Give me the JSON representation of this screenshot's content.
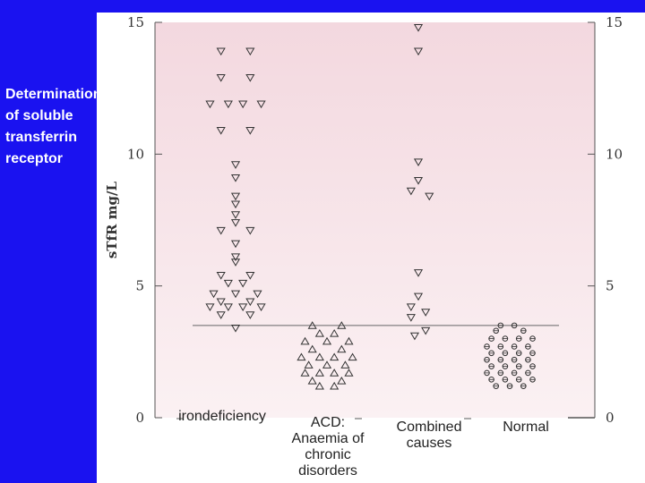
{
  "slide": {
    "title": "Determination\nof soluble\ntransferrin\n receptor"
  },
  "colors": {
    "background": "#1a12f0",
    "plot_fill": "#f7e2e8",
    "marker": "#333333",
    "title_text": "#ffffff"
  },
  "chart_data": {
    "type": "scatter",
    "title": "",
    "ylabel": "sTfR mg/L",
    "ylim": [
      0,
      15
    ],
    "yticks": [
      0,
      5,
      10,
      15
    ],
    "ytick_labels": [
      "0",
      "5",
      "10",
      "15"
    ],
    "reference_line": 3.5,
    "grid": false,
    "categories": [
      "irondeficiency",
      "ACD:\nAnaemia of\nchronic\ndisorders",
      "Combined\ncauses",
      "Normal"
    ],
    "series": [
      {
        "marker": "triangle-down",
        "values": [
          {
            "x": 0.84,
            "y": 13.9
          },
          {
            "x": 1.16,
            "y": 13.9
          },
          {
            "x": 0.84,
            "y": 12.9
          },
          {
            "x": 1.16,
            "y": 12.9
          },
          {
            "x": 0.72,
            "y": 11.9
          },
          {
            "x": 0.92,
            "y": 11.9
          },
          {
            "x": 1.08,
            "y": 11.9
          },
          {
            "x": 1.28,
            "y": 11.9
          },
          {
            "x": 0.84,
            "y": 10.9
          },
          {
            "x": 1.16,
            "y": 10.9
          },
          {
            "x": 1.0,
            "y": 9.6
          },
          {
            "x": 1.0,
            "y": 9.1
          },
          {
            "x": 1.0,
            "y": 8.4
          },
          {
            "x": 1.0,
            "y": 8.1
          },
          {
            "x": 1.0,
            "y": 7.7
          },
          {
            "x": 1.0,
            "y": 7.4
          },
          {
            "x": 0.84,
            "y": 7.1
          },
          {
            "x": 1.16,
            "y": 7.1
          },
          {
            "x": 1.0,
            "y": 6.6
          },
          {
            "x": 1.0,
            "y": 6.1
          },
          {
            "x": 1.0,
            "y": 5.9
          },
          {
            "x": 0.84,
            "y": 5.4
          },
          {
            "x": 1.16,
            "y": 5.4
          },
          {
            "x": 0.92,
            "y": 5.1
          },
          {
            "x": 1.08,
            "y": 5.1
          },
          {
            "x": 0.76,
            "y": 4.7
          },
          {
            "x": 1.0,
            "y": 4.7
          },
          {
            "x": 1.24,
            "y": 4.7
          },
          {
            "x": 0.84,
            "y": 4.4
          },
          {
            "x": 1.16,
            "y": 4.4
          },
          {
            "x": 0.72,
            "y": 4.2
          },
          {
            "x": 0.92,
            "y": 4.2
          },
          {
            "x": 1.08,
            "y": 4.2
          },
          {
            "x": 1.28,
            "y": 4.2
          },
          {
            "x": 0.84,
            "y": 3.9
          },
          {
            "x": 1.16,
            "y": 3.9
          },
          {
            "x": 1.0,
            "y": 3.4
          }
        ]
      },
      {
        "marker": "triangle-up",
        "values": [
          {
            "x": 1.84,
            "y": 3.5
          },
          {
            "x": 2.16,
            "y": 3.5
          },
          {
            "x": 1.92,
            "y": 3.2
          },
          {
            "x": 2.08,
            "y": 3.2
          },
          {
            "x": 1.76,
            "y": 2.9
          },
          {
            "x": 2.0,
            "y": 2.9
          },
          {
            "x": 2.24,
            "y": 2.9
          },
          {
            "x": 1.84,
            "y": 2.6
          },
          {
            "x": 2.16,
            "y": 2.6
          },
          {
            "x": 1.72,
            "y": 2.3
          },
          {
            "x": 1.92,
            "y": 2.3
          },
          {
            "x": 2.08,
            "y": 2.3
          },
          {
            "x": 2.28,
            "y": 2.3
          },
          {
            "x": 1.8,
            "y": 2.0
          },
          {
            "x": 2.0,
            "y": 2.0
          },
          {
            "x": 2.2,
            "y": 2.0
          },
          {
            "x": 1.76,
            "y": 1.7
          },
          {
            "x": 1.92,
            "y": 1.7
          },
          {
            "x": 2.08,
            "y": 1.7
          },
          {
            "x": 2.24,
            "y": 1.7
          },
          {
            "x": 1.84,
            "y": 1.4
          },
          {
            "x": 2.16,
            "y": 1.4
          },
          {
            "x": 1.92,
            "y": 1.2
          },
          {
            "x": 2.08,
            "y": 1.2
          }
        ]
      },
      {
        "marker": "triangle-down",
        "values": [
          {
            "x": 3.0,
            "y": 14.8
          },
          {
            "x": 3.0,
            "y": 13.9
          },
          {
            "x": 3.0,
            "y": 9.7
          },
          {
            "x": 3.0,
            "y": 9.0
          },
          {
            "x": 2.92,
            "y": 8.6
          },
          {
            "x": 3.12,
            "y": 8.4
          },
          {
            "x": 3.0,
            "y": 5.5
          },
          {
            "x": 3.0,
            "y": 4.6
          },
          {
            "x": 2.92,
            "y": 4.2
          },
          {
            "x": 3.08,
            "y": 4.0
          },
          {
            "x": 2.92,
            "y": 3.8
          },
          {
            "x": 3.08,
            "y": 3.3
          },
          {
            "x": 2.96,
            "y": 3.1
          }
        ]
      },
      {
        "marker": "circle-cross",
        "values": [
          {
            "x": 3.9,
            "y": 3.5
          },
          {
            "x": 4.05,
            "y": 3.5
          },
          {
            "x": 3.85,
            "y": 3.3
          },
          {
            "x": 4.15,
            "y": 3.3
          },
          {
            "x": 3.8,
            "y": 3.0
          },
          {
            "x": 3.95,
            "y": 3.0
          },
          {
            "x": 4.1,
            "y": 3.0
          },
          {
            "x": 4.25,
            "y": 3.0
          },
          {
            "x": 3.75,
            "y": 2.7
          },
          {
            "x": 3.9,
            "y": 2.7
          },
          {
            "x": 4.05,
            "y": 2.7
          },
          {
            "x": 4.2,
            "y": 2.7
          },
          {
            "x": 3.8,
            "y": 2.45
          },
          {
            "x": 3.95,
            "y": 2.45
          },
          {
            "x": 4.1,
            "y": 2.45
          },
          {
            "x": 4.25,
            "y": 2.45
          },
          {
            "x": 3.75,
            "y": 2.2
          },
          {
            "x": 3.9,
            "y": 2.2
          },
          {
            "x": 4.05,
            "y": 2.2
          },
          {
            "x": 4.2,
            "y": 2.2
          },
          {
            "x": 3.8,
            "y": 1.95
          },
          {
            "x": 3.95,
            "y": 1.95
          },
          {
            "x": 4.1,
            "y": 1.95
          },
          {
            "x": 4.25,
            "y": 1.95
          },
          {
            "x": 3.75,
            "y": 1.7
          },
          {
            "x": 3.9,
            "y": 1.7
          },
          {
            "x": 4.05,
            "y": 1.7
          },
          {
            "x": 4.2,
            "y": 1.7
          },
          {
            "x": 3.8,
            "y": 1.45
          },
          {
            "x": 3.95,
            "y": 1.45
          },
          {
            "x": 4.1,
            "y": 1.45
          },
          {
            "x": 4.25,
            "y": 1.45
          },
          {
            "x": 3.85,
            "y": 1.2
          },
          {
            "x": 4.0,
            "y": 1.2
          },
          {
            "x": 4.15,
            "y": 1.2
          }
        ]
      }
    ]
  }
}
